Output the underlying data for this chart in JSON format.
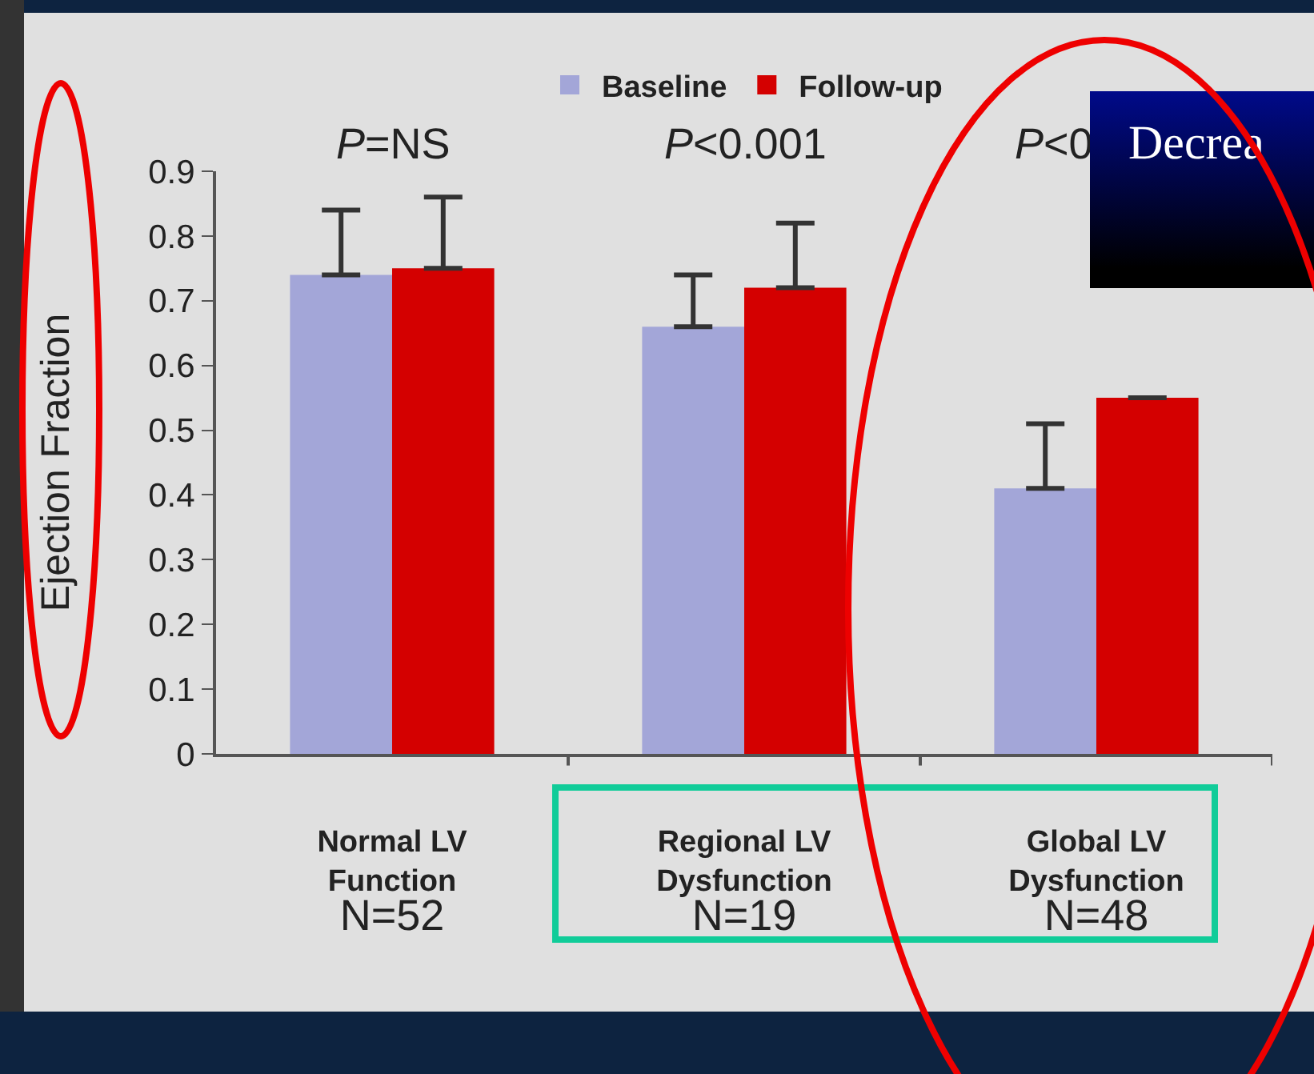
{
  "chart_data": {
    "type": "bar",
    "ylabel": "Ejection Fraction",
    "categories": [
      "Normal LV\nFunction\nN=52",
      "Regional LV\nDysfunction\nN=19",
      "Global LV\nDysfunction\nN=48"
    ],
    "series": [
      {
        "name": "Baseline",
        "color": "#a3a6d8",
        "values": [
          0.74,
          0.66,
          0.41
        ],
        "errors": [
          [
            0.74,
            0.84
          ],
          [
            0.66,
            0.74
          ],
          [
            0.41,
            0.51
          ]
        ]
      },
      {
        "name": "Follow-up",
        "color": "#d40000",
        "values": [
          0.75,
          0.72,
          0.55
        ],
        "errors": [
          [
            0.75,
            0.86
          ],
          [
            0.72,
            0.82
          ],
          null
        ]
      }
    ],
    "ylim": [
      0,
      0.9
    ],
    "yticks": [
      0,
      0.1,
      0.2,
      0.3,
      0.4,
      0.5,
      0.6,
      0.7,
      0.8,
      0.9
    ],
    "annotations": [
      "P=NS",
      "P<0.001",
      "P<0",
      "Decrea"
    ],
    "legend": "top",
    "grid": false
  }
}
